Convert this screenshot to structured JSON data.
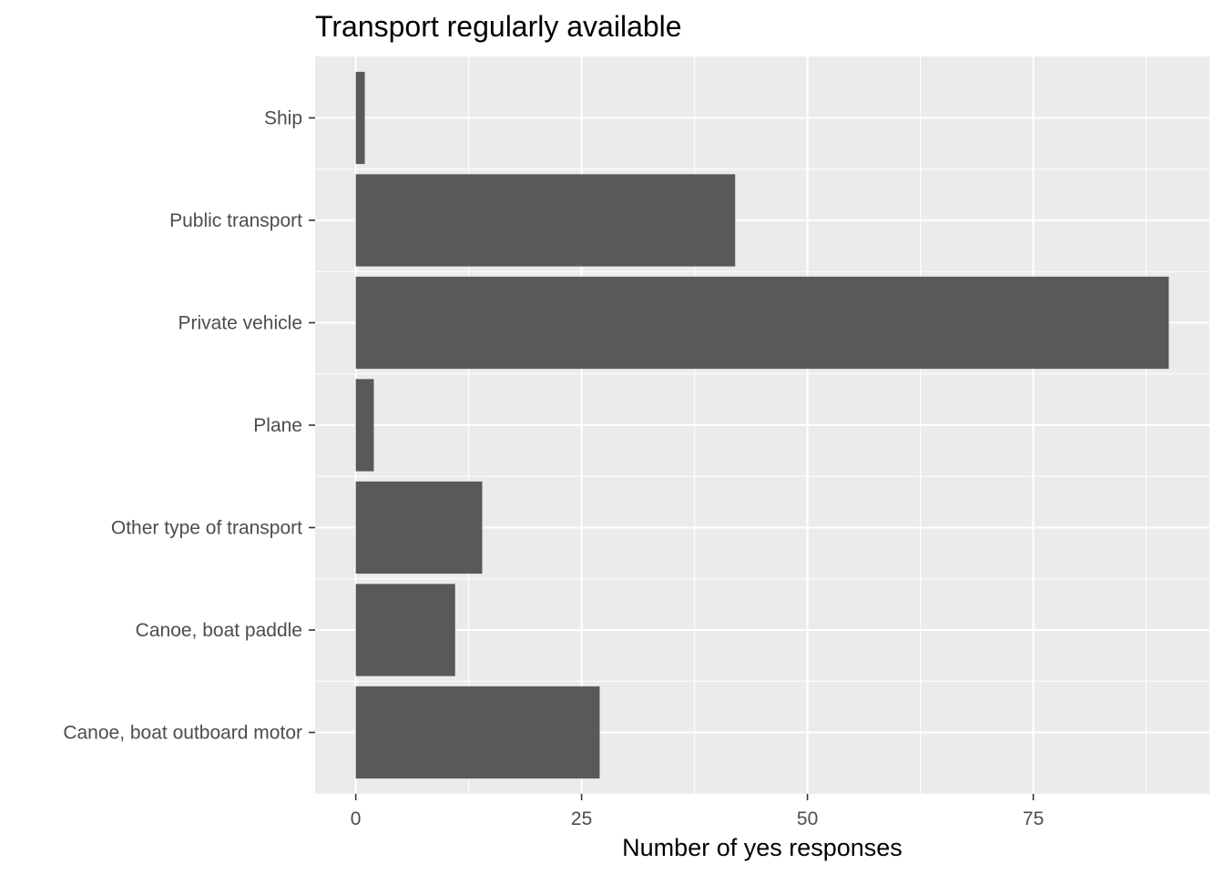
{
  "chart_data": {
    "type": "bar",
    "orientation": "horizontal",
    "title": "Transport regularly available",
    "xlabel": "Number of yes responses",
    "ylabel": "",
    "categories": [
      "Canoe, boat outboard motor",
      "Canoe, boat paddle",
      "Other type of transport",
      "Plane",
      "Private vehicle",
      "Public transport",
      "Ship"
    ],
    "values": [
      27,
      11,
      14,
      2,
      90,
      42,
      1
    ],
    "xlim": [
      -4.5,
      94.5
    ],
    "xticks": [
      0,
      25,
      50,
      75
    ],
    "xtick_labels": [
      "0",
      "25",
      "50",
      "75"
    ],
    "grid": true,
    "legend": "none",
    "colors": {
      "bar": "#595959",
      "panel": "#ebebeb",
      "grid": "#ffffff"
    }
  }
}
